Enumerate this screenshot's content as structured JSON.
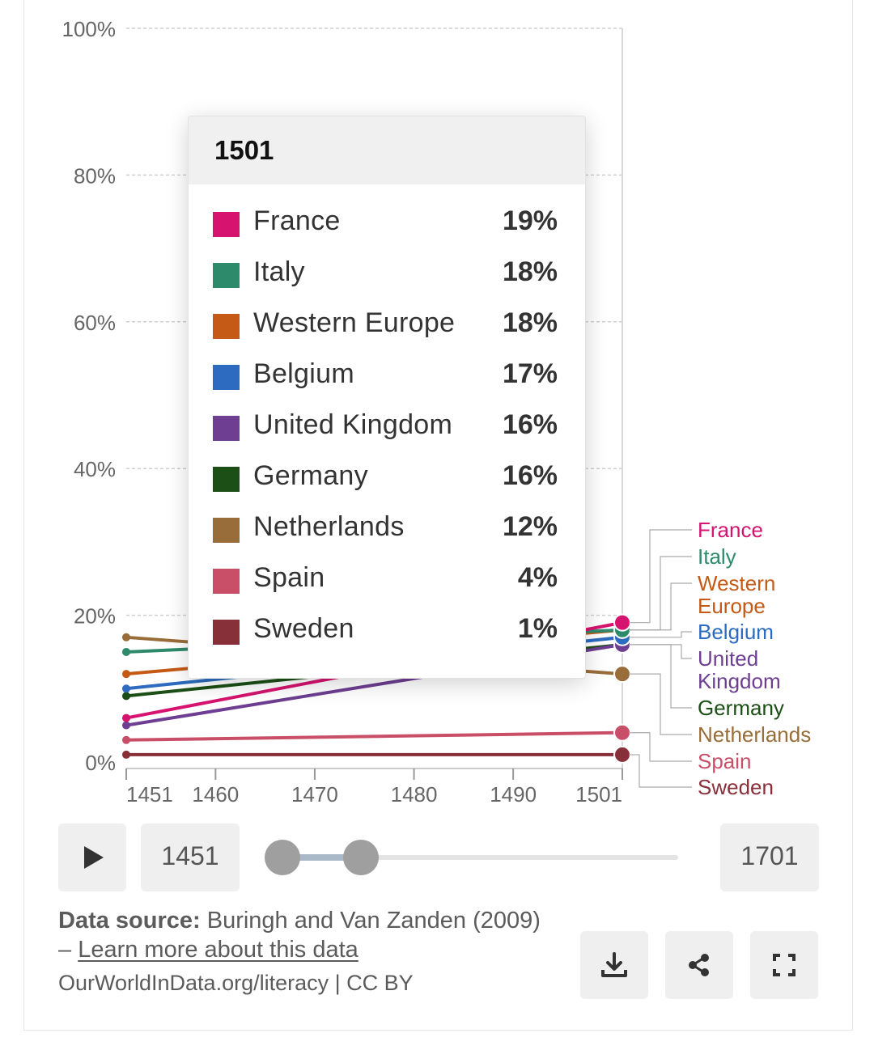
{
  "chart_data": {
    "type": "line",
    "x_range": [
      1451,
      1501
    ],
    "x_ticks": [
      "1451",
      "1460",
      "1470",
      "1480",
      "1490",
      "1501"
    ],
    "y_ticks": [
      "100%",
      "80%",
      "60%",
      "40%",
      "20%",
      "0%"
    ],
    "ylim": [
      0,
      100
    ],
    "grid": true,
    "legend": "right (line labels)",
    "series": [
      {
        "name": "France",
        "color": "#d6136f",
        "values": [
          [
            1451,
            6
          ],
          [
            1501,
            19
          ]
        ]
      },
      {
        "name": "Italy",
        "color": "#2d8a6b",
        "values": [
          [
            1451,
            15
          ],
          [
            1501,
            18
          ]
        ]
      },
      {
        "name": "Western Europe",
        "label_lines": [
          "Western",
          "Europe"
        ],
        "color": "#c55a16",
        "values": [
          [
            1451,
            12
          ],
          [
            1501,
            18
          ]
        ]
      },
      {
        "name": "Belgium",
        "color": "#2c6bbf",
        "values": [
          [
            1451,
            10
          ],
          [
            1501,
            17
          ]
        ]
      },
      {
        "name": "United Kingdom",
        "label_lines": [
          "United",
          "Kingdom"
        ],
        "color": "#6d3e91",
        "values": [
          [
            1451,
            5
          ],
          [
            1501,
            16
          ]
        ]
      },
      {
        "name": "Germany",
        "color": "#1b4f15",
        "values": [
          [
            1451,
            9
          ],
          [
            1501,
            16
          ]
        ]
      },
      {
        "name": "Netherlands",
        "color": "#996d39",
        "values": [
          [
            1451,
            17
          ],
          [
            1501,
            12
          ]
        ]
      },
      {
        "name": "Spain",
        "color": "#c94e68",
        "values": [
          [
            1451,
            3
          ],
          [
            1501,
            4
          ]
        ]
      },
      {
        "name": "Sweden",
        "color": "#883039",
        "values": [
          [
            1451,
            1
          ],
          [
            1501,
            1
          ]
        ]
      }
    ]
  },
  "tooltip": {
    "title": "1501",
    "rows": [
      {
        "name": "France",
        "value": "19%",
        "color": "#d6136f"
      },
      {
        "name": "Italy",
        "value": "18%",
        "color": "#2d8a6b"
      },
      {
        "name": "Western Europe",
        "value": "18%",
        "color": "#c55a16"
      },
      {
        "name": "Belgium",
        "value": "17%",
        "color": "#2c6bbf"
      },
      {
        "name": "United Kingdom",
        "value": "16%",
        "color": "#6d3e91"
      },
      {
        "name": "Germany",
        "value": "16%",
        "color": "#1b4f15"
      },
      {
        "name": "Netherlands",
        "value": "12%",
        "color": "#996d39"
      },
      {
        "name": "Spain",
        "value": "4%",
        "color": "#c94e68"
      },
      {
        "name": "Sweden",
        "value": "1%",
        "color": "#883039"
      }
    ]
  },
  "timeline": {
    "play_icon": "play-icon",
    "start_label": "1451",
    "end_label": "1701",
    "selected_range": [
      1451,
      1501
    ]
  },
  "footer": {
    "source_label": "Data source:",
    "source_text": " Buringh and Van Zanden (2009) – ",
    "learn_more": "Learn more about this data",
    "url_license": "OurWorldInData.org/literacy | CC BY",
    "icons": [
      "download-icon",
      "share-icon",
      "fullscreen-icon"
    ]
  }
}
